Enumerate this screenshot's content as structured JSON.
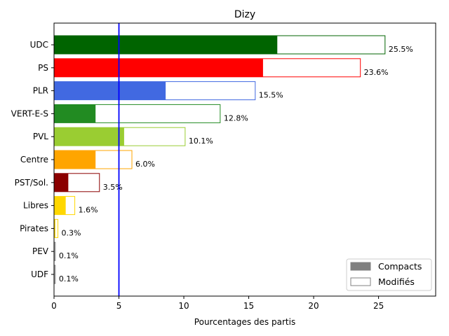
{
  "chart_data": {
    "type": "bar",
    "orientation": "horizontal",
    "title": "Dizy",
    "xlabel": "Pourcentages des partis",
    "ylabel": "",
    "xlim": [
      0,
      29.4
    ],
    "xticks": [
      0,
      5,
      10,
      15,
      20,
      25
    ],
    "threshold_line": {
      "x": 5,
      "color": "#0000ff"
    },
    "legend": {
      "position": "bottom-right",
      "entries": [
        {
          "label": "Compacts",
          "style": "filled",
          "color": "#808080"
        },
        {
          "label": "Modifiés",
          "style": "outline",
          "color": "#808080"
        }
      ]
    },
    "categories": [
      "UDC",
      "PS",
      "PLR",
      "VERT-E-S",
      "PVL",
      "Centre",
      "PST/Sol.",
      "Libres",
      "Pirates",
      "PEV",
      "UDF"
    ],
    "colors": [
      "#006400",
      "#ff0000",
      "#4169e1",
      "#228b22",
      "#9acd32",
      "#ffa500",
      "#8b0000",
      "#ffd700",
      "#ffd700",
      "#808080",
      "#808080"
    ],
    "series": [
      {
        "name": "Compacts",
        "values": [
          17.2,
          16.1,
          8.6,
          3.2,
          5.4,
          3.2,
          1.1,
          0.9,
          0.1,
          0.05,
          0.05
        ]
      },
      {
        "name": "Modifiés",
        "values": [
          25.5,
          23.6,
          15.5,
          12.8,
          10.1,
          6.0,
          3.5,
          1.6,
          0.3,
          0.1,
          0.1
        ]
      }
    ],
    "value_labels": [
      "25.5%",
      "23.6%",
      "15.5%",
      "12.8%",
      "10.1%",
      "6.0%",
      "3.5%",
      "1.6%",
      "0.3%",
      "0.1%",
      "0.1%"
    ]
  }
}
